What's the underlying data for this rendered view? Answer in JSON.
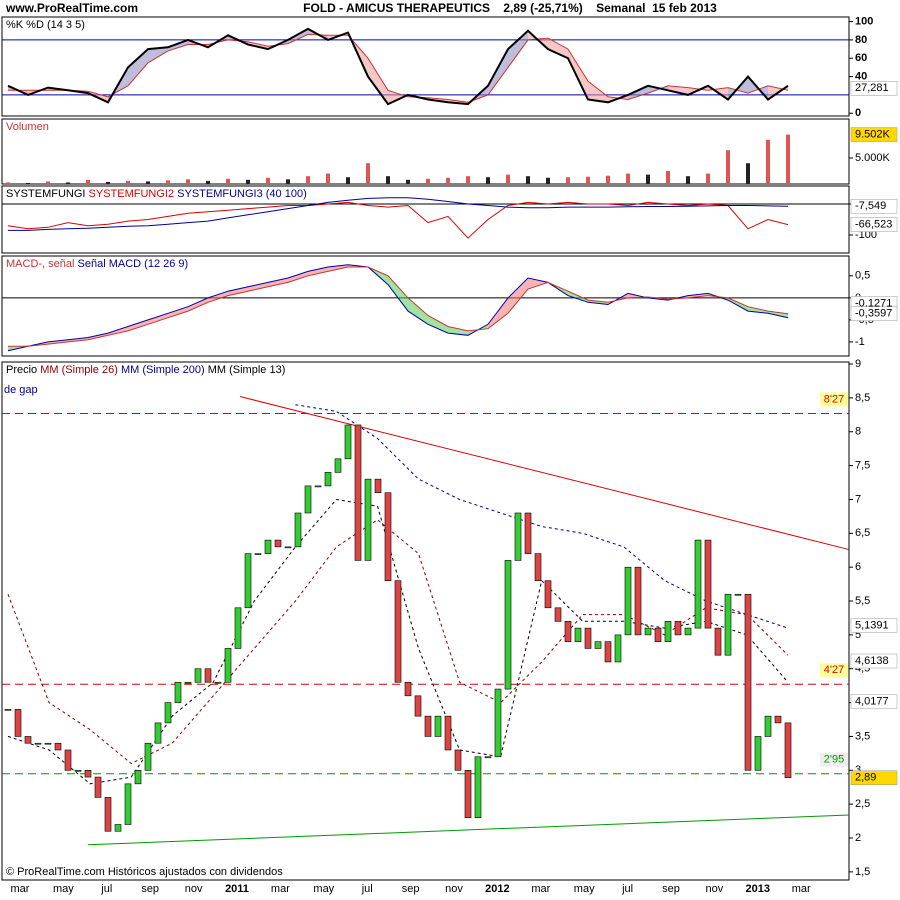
{
  "header": {
    "site": "www.ProRealTime.com",
    "title": "FOLD - AMICUS THERAPEUTICS    2,89 (-25,71%)    Semanal  15 feb 2013"
  },
  "footer": "© ProRealTime.com Históricos ajustados con dividendos",
  "chart_data": [
    {
      "type": "stochastic",
      "legend": [
        {
          "text": "%K %D (14 3 5)",
          "color": "#000000"
        }
      ],
      "ylim": [
        -3,
        105
      ],
      "yticks": [
        0,
        40,
        60,
        80,
        100
      ],
      "levels": [
        80,
        20
      ],
      "series": [
        {
          "color": "#000000",
          "values": [
            30,
            20,
            28,
            25,
            22,
            12,
            50,
            70,
            72,
            80,
            72,
            85,
            75,
            70,
            80,
            92,
            80,
            88,
            40,
            10,
            20,
            15,
            12,
            10,
            30,
            70,
            90,
            70,
            60,
            15,
            12,
            20,
            30,
            25,
            20,
            30,
            15,
            40,
            15,
            30
          ]
        },
        {
          "color": "#cc3333",
          "values": [
            25,
            25,
            25,
            25,
            24,
            18,
            30,
            55,
            68,
            75,
            75,
            80,
            78,
            73,
            76,
            86,
            85,
            85,
            60,
            25,
            18,
            17,
            15,
            12,
            20,
            50,
            80,
            82,
            70,
            35,
            18,
            15,
            22,
            30,
            28,
            25,
            28,
            22,
            30,
            25
          ]
        }
      ],
      "markers": [
        {
          "value": 27.281,
          "label": "27,281",
          "fill": "#ffffff"
        }
      ]
    },
    {
      "type": "bar",
      "legend": [
        {
          "text": "Volumen",
          "color": "#cc3333"
        }
      ],
      "ylim": [
        0,
        12500000
      ],
      "yticks": [
        {
          "value": 5000000,
          "label": "5.000K"
        }
      ],
      "series": [
        {
          "color": "#dd5555",
          "values": [
            300000,
            200000,
            500000,
            300000,
            800000,
            400000,
            600000,
            500000,
            700000,
            900000,
            600000,
            1000000,
            800000,
            1200000,
            900000,
            1500000,
            2000000,
            1300000,
            4000000,
            1500000,
            800000,
            1000000,
            1200000,
            1500000,
            1300000,
            1800000,
            1500000,
            1200000,
            1300000,
            1400000,
            1600000,
            2000000,
            1800000,
            2500000,
            1500000,
            2000000,
            6500000,
            4000000,
            8500000,
            9500000
          ]
        }
      ],
      "markers": [
        {
          "value": 9502000,
          "label": "9.502K",
          "fill": "#ffd800"
        }
      ]
    },
    {
      "type": "line",
      "legend": [
        {
          "text": "SYSTEMFUNGI ",
          "color": "#000000"
        },
        {
          "text": "SYSTEMFUNGI2 ",
          "color": "#dd0000"
        },
        {
          "text": "SYSTEMFUNGI3 (40 100)",
          "color": "#000099"
        }
      ],
      "ylim": [
        -158,
        58
      ],
      "yticks": [
        0,
        -100
      ],
      "levels": [
        0
      ],
      "series": [
        {
          "color": "#dd0000",
          "values": [
            -70,
            -80,
            -75,
            -60,
            -70,
            -65,
            -55,
            -50,
            -40,
            -30,
            -25,
            -20,
            -15,
            -10,
            -5,
            -5,
            0,
            5,
            -5,
            -10,
            -5,
            -60,
            -40,
            -110,
            -50,
            -5,
            5,
            0,
            5,
            0,
            0,
            -5,
            5,
            0,
            -5,
            0,
            -5,
            -80,
            -50,
            -66.523
          ]
        },
        {
          "color": "#000099",
          "values": [
            -85,
            -85,
            -82,
            -80,
            -78,
            -75,
            -72,
            -70,
            -65,
            -60,
            -55,
            -45,
            -35,
            -25,
            -15,
            -5,
            5,
            12,
            18,
            20,
            20,
            15,
            8,
            0,
            -5,
            -10,
            -12,
            -12,
            -10,
            -10,
            -10,
            -9,
            -8,
            -8,
            -7,
            -6,
            -5,
            -5,
            -6,
            -7.549
          ]
        }
      ],
      "markers": [
        {
          "value": -7.549,
          "label": "-7,549",
          "fill": "#ffffff"
        },
        {
          "value": -66.523,
          "label": "-66,523",
          "fill": "#ffffff"
        }
      ]
    },
    {
      "type": "macd",
      "legend": [
        {
          "text": "MACD-, señal ",
          "color": "#cc3333"
        },
        {
          "text": "Señal MACD (12 26 9)",
          "color": "#000099"
        }
      ],
      "ylim": [
        -1.32,
        0.95
      ],
      "yticks": [
        {
          "value": 0.5,
          "label": "0,5"
        },
        0,
        {
          "value": -0.5,
          "label": "-0,5"
        },
        -1
      ],
      "levels": [
        0
      ],
      "series": [
        {
          "color": "#0000aa",
          "values": [
            -1.2,
            -1.1,
            -1.0,
            -0.95,
            -0.9,
            -0.8,
            -0.65,
            -0.5,
            -0.35,
            -0.2,
            0.0,
            0.15,
            0.25,
            0.35,
            0.45,
            0.6,
            0.7,
            0.75,
            0.7,
            0.3,
            -0.3,
            -0.6,
            -0.8,
            -0.85,
            -0.6,
            0.0,
            0.45,
            0.35,
            0.05,
            -0.1,
            -0.15,
            0.1,
            0.0,
            -0.05,
            0.05,
            0.1,
            -0.05,
            -0.3,
            -0.35,
            -0.45
          ]
        },
        {
          "color": "#cc3333",
          "values": [
            -1.1,
            -1.1,
            -1.05,
            -1.0,
            -0.95,
            -0.85,
            -0.75,
            -0.6,
            -0.45,
            -0.3,
            -0.1,
            0.05,
            0.15,
            0.25,
            0.35,
            0.5,
            0.6,
            0.7,
            0.7,
            0.5,
            0.0,
            -0.4,
            -0.65,
            -0.75,
            -0.7,
            -0.35,
            0.2,
            0.35,
            0.15,
            -0.05,
            -0.1,
            0.0,
            0.02,
            -0.03,
            0.0,
            0.05,
            0.0,
            -0.2,
            -0.3,
            -0.36
          ]
        }
      ],
      "markers": [
        {
          "value": -0.1271,
          "label": "-0,1271",
          "fill": "#ffffff"
        },
        {
          "value": -0.3597,
          "label": "-0,3597",
          "fill": "#ffffff"
        }
      ]
    },
    {
      "type": "candlestick",
      "legend": [
        {
          "text": "Precio ",
          "color": "#000000"
        },
        {
          "text": "MM (Simple 26) ",
          "color": "#8b0000"
        },
        {
          "text": "MM (Simple 200) ",
          "color": "#00008b"
        },
        {
          "text": "MM (Simple 13)",
          "color": "#000000"
        }
      ],
      "annotation": "de gap",
      "ylim": [
        1.38,
        9.03
      ],
      "yticks": [
        9,
        {
          "value": 8.5,
          "label": "8,5"
        },
        8,
        {
          "value": 7.5,
          "label": "7,5"
        },
        7,
        {
          "value": 6.5,
          "label": "6,5"
        },
        6,
        {
          "value": 5.5,
          "label": "5,5"
        },
        5,
        {
          "value": 4.5,
          "label": "4,5"
        },
        4,
        {
          "value": 3.5,
          "label": "3,5"
        },
        3,
        {
          "value": 2.5,
          "label": "2,5"
        },
        2,
        {
          "value": 1.5,
          "label": "1,5"
        }
      ],
      "x_labels": [
        "mar",
        "may",
        "jul",
        "sep",
        "nov",
        "2011",
        "mar",
        "may",
        "jul",
        "sep",
        "nov",
        "2012",
        "mar",
        "may",
        "jul",
        "sep",
        "nov",
        "2013",
        "mar"
      ],
      "closes": [
        3.9,
        3.5,
        3.4,
        3.4,
        3.4,
        3.3,
        3.0,
        3.0,
        2.9,
        2.6,
        2.1,
        2.2,
        2.8,
        3.0,
        3.4,
        3.7,
        4.0,
        4.3,
        4.3,
        4.5,
        4.3,
        4.3,
        4.8,
        5.4,
        6.2,
        6.2,
        6.4,
        6.3,
        6.3,
        6.8,
        7.2,
        7.2,
        7.4,
        7.6,
        8.1,
        6.1,
        7.3,
        7.1,
        5.8,
        4.3,
        4.1,
        3.8,
        3.5,
        3.8,
        3.3,
        3.0,
        2.3,
        3.2,
        3.2,
        4.2,
        6.1,
        6.8,
        6.2,
        5.8,
        5.4,
        5.2,
        4.9,
        5.1,
        4.8,
        4.9,
        4.6,
        5.0,
        6.0,
        5.0,
        5.1,
        4.9,
        5.2,
        5.0,
        5.1,
        6.4,
        5.1,
        4.7,
        5.6,
        5.6,
        3.0,
        3.5,
        3.8,
        3.7,
        2.89
      ],
      "up_color": "#33cc33",
      "down_color": "#dd4444",
      "series": [
        {
          "color": "#8b0000",
          "values": [
            5.6,
            4.0,
            3.6,
            3.1,
            3.4,
            4.1,
            4.8,
            5.5,
            6.3,
            6.7,
            6.2,
            4.3,
            4.0,
            4.6,
            5.3,
            5.3,
            5.0,
            5.4,
            5.3,
            4.7
          ]
        },
        {
          "color": "#00008b",
          "values": [
            null,
            null,
            null,
            null,
            null,
            null,
            null,
            8.4,
            8.3,
            7.9,
            7.3,
            7.0,
            6.8,
            6.6,
            6.5,
            6.3,
            5.8,
            5.5,
            5.3,
            5.1
          ]
        },
        {
          "color": "#000000",
          "values": [
            3.5,
            3.3,
            2.8,
            2.9,
            3.8,
            4.3,
            5.5,
            6.3,
            7.0,
            6.9,
            4.8,
            3.3,
            3.2,
            5.8,
            5.2,
            5.2,
            5.1,
            5.2,
            5.0,
            4.3
          ]
        }
      ],
      "levels": [
        {
          "value": 8.27,
          "label": "8'27",
          "color": "#dd0000",
          "fill": "#ffff99"
        },
        {
          "value": 4.27,
          "label": "4'27",
          "color": "#dd0000",
          "fill": "#ffff99"
        },
        {
          "value": 2.95,
          "label": "2'95",
          "color": "#009900",
          "fill": "#eeeeee"
        }
      ],
      "trendlines": [
        {
          "start": 8.52,
          "end": 6.26,
          "color": "#dd0000"
        },
        {
          "start": 1.9,
          "end": 2.34,
          "color": "#009900"
        }
      ],
      "markers": [
        {
          "value": 5.1391,
          "label": "5,1391",
          "fill": "#ffffff"
        },
        {
          "value": 4.6138,
          "label": "4,6138",
          "fill": "#ffffff"
        },
        {
          "value": 4.0177,
          "label": "4,0177",
          "fill": "#ffffff"
        },
        {
          "value": 2.89,
          "label": "2,89",
          "fill": "#ffd800"
        }
      ]
    }
  ]
}
